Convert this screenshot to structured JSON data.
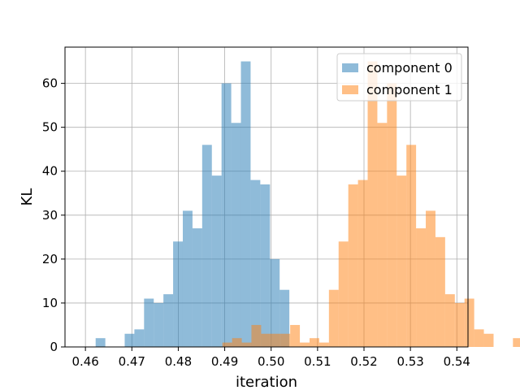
{
  "chart_data": {
    "type": "bar",
    "chart_kind": "histogram",
    "title": "",
    "xlabel": "iteration",
    "ylabel": "KL",
    "xlim": [
      0.4556,
      0.5424
    ],
    "ylim": [
      0,
      68.25
    ],
    "xticks": [
      "0.46",
      "0.47",
      "0.48",
      "0.49",
      "0.50",
      "0.51",
      "0.52",
      "0.53",
      "0.54"
    ],
    "xtick_values": [
      0.46,
      0.47,
      0.48,
      0.49,
      0.5,
      0.51,
      0.52,
      0.53,
      0.54
    ],
    "yticks": [
      "0",
      "10",
      "20",
      "30",
      "40",
      "50",
      "60"
    ],
    "ytick_values": [
      0,
      10,
      20,
      30,
      40,
      50,
      60
    ],
    "grid": true,
    "legend_position": "top-right",
    "series": [
      {
        "name": "component 0",
        "color": "#1f77b4",
        "opacity": 0.5,
        "bin_start": 0.4622,
        "bin_width": 0.002086,
        "counts": [
          2,
          0,
          0,
          3,
          4,
          11,
          10,
          12,
          24,
          31,
          27,
          46,
          39,
          60,
          51,
          65,
          38,
          37,
          20,
          13
        ]
      },
      {
        "name": "component 1",
        "color": "#ff7f0e",
        "opacity": 0.5,
        "bin_start": 0.4895,
        "bin_width": 0.002086,
        "counts": [
          1,
          2,
          1,
          5,
          3,
          3,
          3,
          5,
          1,
          2,
          1,
          13,
          24,
          37,
          38,
          65,
          51,
          60,
          39,
          46,
          27,
          31,
          25,
          12,
          10,
          11,
          4,
          3,
          0,
          0,
          2
        ]
      }
    ]
  }
}
